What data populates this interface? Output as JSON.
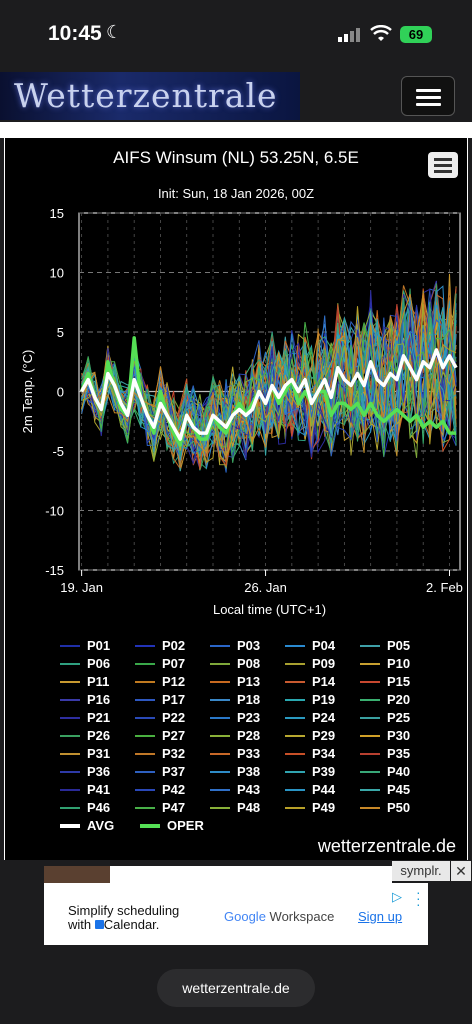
{
  "status": {
    "time": "10:45",
    "battery": "69"
  },
  "header": {
    "logo": "Wetterzentrale"
  },
  "chart": {
    "title": "AIFS Winsum (NL) 53.25N, 6.5E",
    "subtitle": "Init: Sun, 18 Jan 2026, 00Z",
    "ylabel": "2m Temp. (°C)",
    "xlabel": "Local time (UTC+1)",
    "credit": "wetterzentrale.de"
  },
  "chart_data": {
    "type": "line",
    "xlabel": "Local time (UTC+1)",
    "ylabel": "2m Temp. (°C)",
    "ylim": [
      -15,
      15
    ],
    "yticks": [
      15,
      10,
      5,
      0,
      -5,
      -10,
      -15
    ],
    "xticks": [
      {
        "label": "19. Jan",
        "day": 1
      },
      {
        "label": "26. Jan",
        "day": 8
      },
      {
        "label": "2. Feb",
        "day": 15
      }
    ],
    "xrange_days": [
      0.9,
      15.4
    ],
    "grid": true,
    "legend_position": "bottom",
    "members": [
      "P01",
      "P02",
      "P03",
      "P04",
      "P05",
      "P06",
      "P07",
      "P08",
      "P09",
      "P10",
      "P11",
      "P12",
      "P13",
      "P14",
      "P15",
      "P16",
      "P17",
      "P18",
      "P19",
      "P20",
      "P21",
      "P22",
      "P23",
      "P24",
      "P25",
      "P26",
      "P27",
      "P28",
      "P29",
      "P30",
      "P31",
      "P32",
      "P33",
      "P34",
      "P35",
      "P36",
      "P37",
      "P38",
      "P39",
      "P40",
      "P41",
      "P42",
      "P43",
      "P44",
      "P45",
      "P46",
      "P47",
      "P48",
      "P49",
      "P50"
    ],
    "member_colors": [
      "#1f2fa8",
      "#2233b8",
      "#2a66c8",
      "#2a8ad0",
      "#3fa0a8",
      "#2fa080",
      "#3aa84a",
      "#7fa83a",
      "#a8a030",
      "#c8a030",
      "#c89a30",
      "#c07a20",
      "#c86a20",
      "#c85a30",
      "#c84830",
      "#3a3aa8",
      "#2e58c0",
      "#3a88c8",
      "#2aa8b0",
      "#3ab070",
      "#2e2ea0",
      "#2a4ab8",
      "#2a78c8",
      "#2a9ac0",
      "#3aa0a0",
      "#3aa060",
      "#4ab040",
      "#8ab038",
      "#b8a830",
      "#d0a028",
      "#c09030",
      "#c07828",
      "#c86828",
      "#c85028",
      "#b84030",
      "#2e3aa8",
      "#2e60c0",
      "#2e8cc8",
      "#30a4b0",
      "#38a878",
      "#2a2a98",
      "#2a48b8",
      "#3070c8",
      "#2a94c4",
      "#3aa8a8",
      "#30a070",
      "#48b048",
      "#88b038",
      "#b8a028",
      "#c88828"
    ],
    "avg": {
      "name": "AVG",
      "color": "#ffffff",
      "x": [
        1,
        1.25,
        1.5,
        1.75,
        2,
        2.25,
        2.5,
        2.75,
        3,
        3.25,
        3.5,
        3.75,
        4,
        4.25,
        4.5,
        4.75,
        5,
        5.25,
        5.5,
        5.75,
        6,
        6.25,
        6.5,
        6.75,
        7,
        7.25,
        7.5,
        7.75,
        8,
        8.25,
        8.5,
        8.75,
        9,
        9.25,
        9.5,
        9.75,
        10,
        10.25,
        10.5,
        10.75,
        11,
        11.25,
        11.5,
        11.75,
        12,
        12.25,
        12.5,
        12.75,
        13,
        13.25,
        13.5,
        13.75,
        14,
        14.25,
        14.5,
        14.75,
        15,
        15.25
      ],
      "y": [
        0,
        1,
        -0.5,
        -1.5,
        1.5,
        0.5,
        -1,
        -2,
        1,
        -0.5,
        -2,
        -3,
        -1,
        -2,
        -3,
        -4,
        -2,
        -3,
        -3.5,
        -3.5,
        -2,
        -2.5,
        -3,
        -2,
        -1.5,
        -2,
        -1.5,
        0,
        -1,
        0.5,
        -0.5,
        0.5,
        1,
        0,
        1,
        -1,
        0,
        1,
        -0.5,
        2,
        1,
        0.5,
        1.5,
        0.5,
        2.5,
        1,
        0.5,
        1.5,
        1,
        3,
        2,
        1,
        2.5,
        2,
        3.5,
        2,
        3,
        2
      ]
    },
    "oper": {
      "name": "OPER",
      "color": "#55e055",
      "x": [
        1,
        1.25,
        1.5,
        1.75,
        2,
        2.25,
        2.5,
        2.75,
        3,
        3.25,
        3.5,
        3.75,
        4,
        4.25,
        4.5,
        4.75,
        5,
        5.25,
        5.5,
        5.75,
        6,
        6.25,
        6.5,
        6.75,
        7,
        7.25,
        7.5,
        7.75,
        8,
        8.25,
        8.5,
        8.75,
        9,
        9.25,
        9.5,
        9.75,
        10,
        10.25,
        10.5,
        10.75,
        11,
        11.25,
        11.5,
        11.75,
        12,
        12.25,
        12.5,
        12.75,
        13,
        13.25,
        13.5,
        13.75,
        14,
        14.25,
        14.5,
        14.75,
        15,
        15.25
      ],
      "y": [
        0,
        1.5,
        -0.5,
        -1.5,
        2.5,
        0.5,
        -1.5,
        -2,
        4.5,
        -0.5,
        -2,
        -3.5,
        0,
        -2,
        -3.5,
        -4.5,
        -2,
        -3,
        -4,
        -4,
        -2,
        -3,
        -3.5,
        -2,
        -1,
        -2,
        -1,
        0,
        -1,
        0.5,
        -1,
        0,
        1,
        -1,
        0,
        -1,
        0,
        0,
        -2,
        -1,
        -1,
        -1.5,
        -1,
        -2,
        -1,
        -2,
        -2.5,
        -2,
        -1.5,
        -2,
        -2.5,
        -2,
        -3,
        -2.5,
        -3,
        -2.5,
        -3.5,
        -3.5
      ]
    }
  },
  "legend": {
    "items": [
      "P01",
      "P02",
      "P03",
      "P04",
      "P05",
      "P06",
      "P07",
      "P08",
      "P09",
      "P10",
      "P11",
      "P12",
      "P13",
      "P14",
      "P15",
      "P16",
      "P17",
      "P18",
      "P19",
      "P20",
      "P21",
      "P22",
      "P23",
      "P24",
      "P25",
      "P26",
      "P27",
      "P28",
      "P29",
      "P30",
      "P31",
      "P32",
      "P33",
      "P34",
      "P35",
      "P36",
      "P37",
      "P38",
      "P39",
      "P40",
      "P41",
      "P42",
      "P43",
      "P44",
      "P45",
      "P46",
      "P47",
      "P48",
      "P49",
      "P50"
    ],
    "avg_label": "AVG",
    "oper_label": "OPER"
  },
  "ad": {
    "label": "symplr.",
    "close": "✕",
    "text1": "Simplify scheduling",
    "text2": "with",
    "text2b": "Calendar.",
    "google": "Google",
    "workspace": "Workspace",
    "signup": "Sign up"
  },
  "footer": {
    "url": "wetterzentrale.de"
  }
}
